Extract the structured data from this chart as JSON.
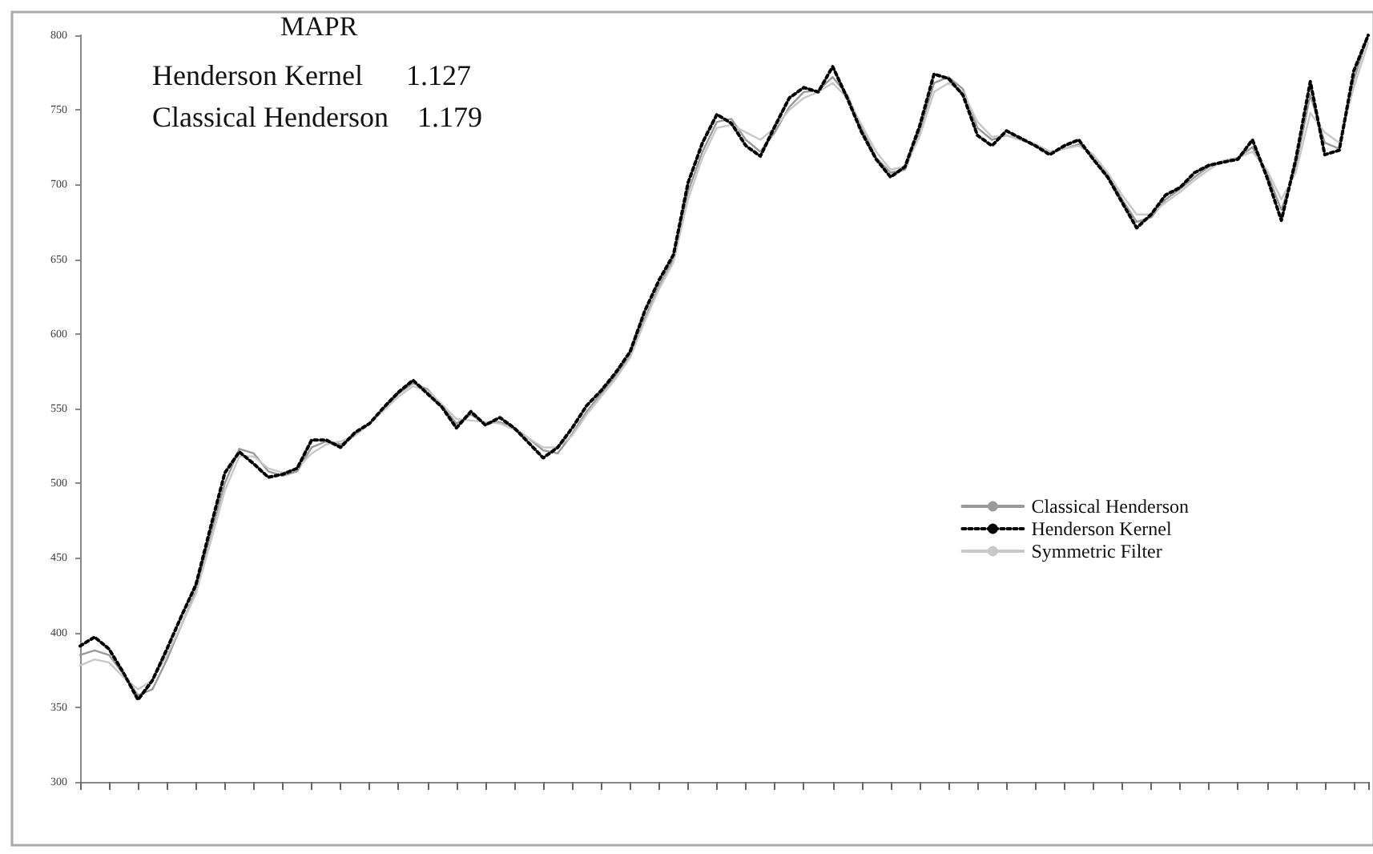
{
  "chart_data": {
    "type": "line",
    "annotations": [
      "MAPR",
      "Henderson Kernel      1.127",
      "Classical Henderson    1.179"
    ],
    "categories": [
      null,
      null,
      null,
      null,
      null,
      null,
      null,
      null,
      null,
      null,
      null,
      null,
      null,
      null,
      null,
      null,
      null,
      null,
      null,
      null,
      null,
      null,
      null,
      null,
      null,
      null,
      null,
      null,
      null,
      null,
      null,
      null,
      null,
      null,
      null,
      null,
      null,
      null,
      null,
      null,
      null,
      null,
      null,
      null,
      null,
      null,
      null,
      null,
      null,
      null,
      null,
      null,
      null,
      null,
      null,
      null,
      null,
      null,
      null,
      null,
      null,
      null,
      null,
      null,
      null,
      null,
      null,
      null,
      null,
      null,
      null,
      null,
      null,
      null,
      null,
      null,
      null,
      null,
      null,
      null,
      null,
      null,
      null,
      null,
      null,
      null,
      null,
      null,
      null,
      null
    ],
    "series": [
      {
        "name": "Classical Henderson",
        "color": "#999999",
        "line_style": "solid",
        "values": [
          385,
          388,
          385,
          372,
          358,
          362,
          382,
          405,
          428,
          465,
          500,
          523,
          520,
          508,
          505,
          508,
          524,
          528,
          526,
          532,
          540,
          550,
          560,
          567,
          563,
          552,
          540,
          546,
          540,
          541,
          537,
          530,
          522,
          520,
          533,
          548,
          560,
          572,
          585,
          610,
          632,
          650,
          695,
          722,
          742,
          744,
          730,
          722,
          735,
          752,
          762,
          763,
          772,
          760,
          738,
          718,
          708,
          710,
          735,
          768,
          772,
          764,
          738,
          730,
          733,
          730,
          727,
          722,
          724,
          727,
          720,
          707,
          690,
          675,
          678,
          690,
          697,
          705,
          712,
          716,
          718,
          725,
          708,
          683,
          712,
          760,
          728,
          724,
          770,
          800
        ]
      },
      {
        "name": "Henderson Kernel",
        "color": "#000000",
        "line_style": "dotted",
        "values": [
          391,
          397,
          389,
          373,
          355,
          368,
          389,
          411,
          432,
          470,
          507,
          521,
          513,
          504,
          506,
          510,
          529,
          529,
          524,
          534,
          540,
          551,
          561,
          569,
          560,
          551,
          537,
          548,
          539,
          544,
          537,
          527,
          517,
          524,
          537,
          552,
          562,
          574,
          588,
          615,
          636,
          653,
          701,
          728,
          747,
          741,
          726,
          719,
          739,
          758,
          765,
          762,
          779,
          758,
          735,
          717,
          705,
          712,
          739,
          774,
          771,
          760,
          733,
          726,
          736,
          731,
          726,
          720,
          726,
          730,
          717,
          705,
          688,
          671,
          680,
          693,
          698,
          708,
          713,
          715,
          717,
          730,
          705,
          676,
          717,
          769,
          720,
          723,
          776,
          800
        ]
      },
      {
        "name": "Symmetric Filter",
        "color": "#c8c8c8",
        "line_style": "solid",
        "values": [
          378,
          382,
          380,
          370,
          362,
          368,
          385,
          405,
          426,
          460,
          495,
          518,
          518,
          510,
          507,
          510,
          520,
          526,
          528,
          532,
          540,
          549,
          558,
          565,
          562,
          553,
          543,
          542,
          541,
          540,
          536,
          530,
          524,
          524,
          532,
          546,
          558,
          570,
          584,
          608,
          630,
          648,
          690,
          718,
          738,
          740,
          735,
          730,
          738,
          750,
          758,
          762,
          768,
          758,
          740,
          722,
          710,
          712,
          732,
          762,
          768,
          762,
          742,
          732,
          733,
          730,
          727,
          722,
          724,
          726,
          720,
          708,
          693,
          680,
          680,
          688,
          695,
          703,
          710,
          716,
          718,
          722,
          710,
          690,
          708,
          748,
          735,
          728,
          765,
          795
        ]
      }
    ],
    "ylim": [
      300,
      800
    ],
    "yticks": [
      300,
      350,
      400,
      450,
      500,
      550,
      600,
      650,
      700,
      750,
      800
    ],
    "grid": false,
    "legend": "right",
    "marker": "none"
  }
}
